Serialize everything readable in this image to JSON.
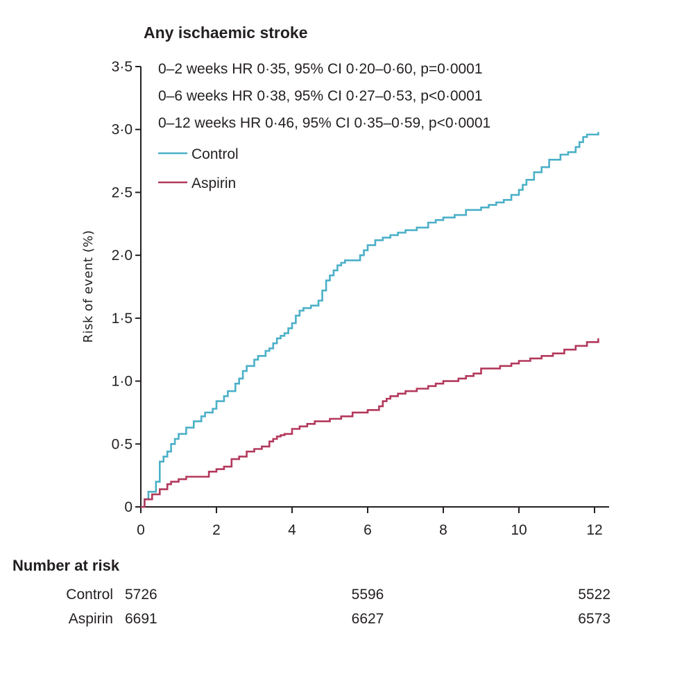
{
  "chart_data": {
    "type": "line",
    "subtype": "kaplan-meier-step",
    "title": "Any ischaemic stroke",
    "xlabel": "",
    "ylabel": "Risk of event (%)",
    "xlim": [
      0,
      12
    ],
    "ylim": [
      0,
      3.5
    ],
    "x_ticks": [
      0,
      2,
      4,
      6,
      8,
      10,
      12
    ],
    "x_tick_labels": [
      "0",
      "2",
      "4",
      "6",
      "8",
      "10",
      "12"
    ],
    "y_ticks": [
      0,
      0.5,
      1.0,
      1.5,
      2.0,
      2.5,
      3.0,
      3.5
    ],
    "y_tick_labels": [
      "0",
      "0·5",
      "1·0",
      "1·5",
      "2·0",
      "2·5",
      "3·0",
      "3·5"
    ],
    "annotations": [
      "0–2 weeks HR 0·35, 95% CI 0·20–0·60, p=0·0001",
      "0–6 weeks HR 0·38, 95% CI 0·27–0·53, p<0·0001",
      "0–12 weeks HR 0·46, 95% CI 0·35–0·59, p<0·0001"
    ],
    "legend_position": "top-left",
    "series": [
      {
        "name": "Control",
        "color": "#4bb0c8",
        "x": [
          0,
          0.1,
          0.2,
          0.4,
          0.5,
          0.6,
          0.7,
          0.8,
          0.9,
          1.0,
          1.2,
          1.4,
          1.6,
          1.7,
          1.9,
          2.0,
          2.2,
          2.3,
          2.5,
          2.6,
          2.7,
          2.8,
          3.0,
          3.1,
          3.3,
          3.4,
          3.5,
          3.6,
          3.7,
          3.8,
          3.9,
          4.0,
          4.1,
          4.2,
          4.3,
          4.5,
          4.7,
          4.8,
          4.9,
          5.0,
          5.1,
          5.2,
          5.3,
          5.4,
          5.8,
          5.9,
          6.0,
          6.2,
          6.4,
          6.6,
          6.8,
          7.0,
          7.3,
          7.6,
          7.8,
          8.0,
          8.3,
          8.6,
          9.0,
          9.2,
          9.4,
          9.6,
          9.8,
          10.0,
          10.1,
          10.2,
          10.4,
          10.6,
          10.8,
          11.1,
          11.3,
          11.5,
          11.6,
          11.7,
          11.8,
          12.1
        ],
        "values": [
          0,
          0.06,
          0.12,
          0.2,
          0.36,
          0.4,
          0.44,
          0.5,
          0.54,
          0.58,
          0.63,
          0.68,
          0.72,
          0.75,
          0.78,
          0.84,
          0.88,
          0.92,
          0.98,
          1.02,
          1.08,
          1.12,
          1.17,
          1.2,
          1.24,
          1.26,
          1.3,
          1.34,
          1.36,
          1.38,
          1.42,
          1.46,
          1.52,
          1.56,
          1.58,
          1.6,
          1.64,
          1.72,
          1.8,
          1.84,
          1.88,
          1.92,
          1.94,
          1.96,
          2.0,
          2.04,
          2.08,
          2.12,
          2.14,
          2.16,
          2.18,
          2.2,
          2.22,
          2.26,
          2.28,
          2.3,
          2.32,
          2.36,
          2.38,
          2.4,
          2.42,
          2.44,
          2.48,
          2.52,
          2.56,
          2.6,
          2.66,
          2.7,
          2.76,
          2.8,
          2.82,
          2.86,
          2.9,
          2.94,
          2.96,
          2.98
        ]
      },
      {
        "name": "Aspirin",
        "color": "#b3385c",
        "x": [
          0,
          0.1,
          0.3,
          0.5,
          0.7,
          0.8,
          1.0,
          1.2,
          1.4,
          1.8,
          2.0,
          2.2,
          2.4,
          2.6,
          2.8,
          3.0,
          3.2,
          3.4,
          3.5,
          3.6,
          3.7,
          3.8,
          4.0,
          4.2,
          4.4,
          4.6,
          5.0,
          5.3,
          5.6,
          6.0,
          6.3,
          6.4,
          6.5,
          6.6,
          6.8,
          7.0,
          7.3,
          7.6,
          7.8,
          8.0,
          8.4,
          8.6,
          8.8,
          9.0,
          9.5,
          9.8,
          10.0,
          10.3,
          10.6,
          10.9,
          11.2,
          11.5,
          11.8,
          12.1
        ],
        "values": [
          0,
          0.06,
          0.1,
          0.14,
          0.18,
          0.2,
          0.22,
          0.24,
          0.24,
          0.28,
          0.3,
          0.32,
          0.38,
          0.4,
          0.44,
          0.46,
          0.48,
          0.52,
          0.54,
          0.56,
          0.57,
          0.58,
          0.62,
          0.64,
          0.66,
          0.68,
          0.7,
          0.72,
          0.75,
          0.77,
          0.8,
          0.84,
          0.86,
          0.88,
          0.9,
          0.92,
          0.94,
          0.96,
          0.98,
          1.0,
          1.02,
          1.04,
          1.06,
          1.1,
          1.12,
          1.14,
          1.16,
          1.18,
          1.2,
          1.22,
          1.25,
          1.28,
          1.31,
          1.34
        ]
      }
    ],
    "number_at_risk": {
      "heading": "Number at risk",
      "timepoints": [
        0,
        6,
        12
      ],
      "rows": [
        {
          "label": "Control",
          "values": [
            "5726",
            "5596",
            "5522"
          ]
        },
        {
          "label": "Aspirin",
          "values": [
            "6691",
            "6627",
            "6573"
          ]
        }
      ]
    }
  }
}
